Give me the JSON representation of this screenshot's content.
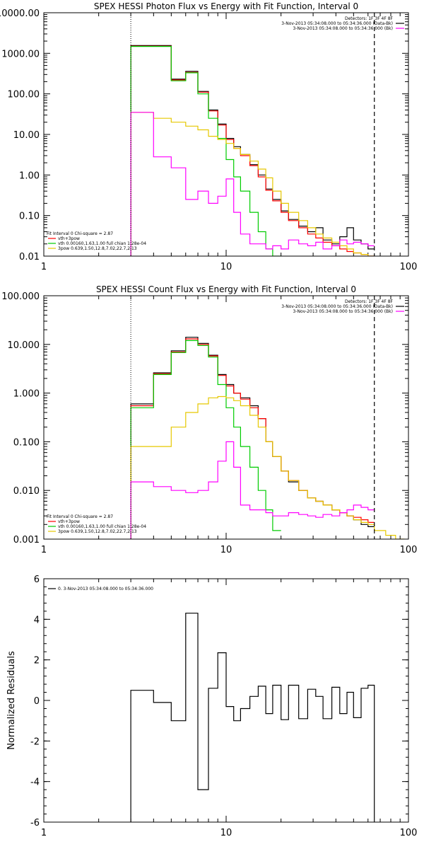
{
  "chart_data": [
    {
      "type": "line",
      "title": "SPEX HESSI Photon Flux vs Energy with Fit Function, Interval 0",
      "xscale": "log",
      "yscale": "log",
      "xlim": [
        1,
        100
      ],
      "ylim": [
        0.01,
        10000
      ],
      "x_ticks": [
        "1",
        "10",
        "100"
      ],
      "y_ticks": [
        "0.01",
        "0.10",
        "1.00",
        "10.00",
        "100.00",
        "1000.00",
        "10000.00"
      ],
      "y_tick_values": [
        0.01,
        0.1,
        1,
        10,
        100,
        1000,
        10000
      ],
      "info_lines": [
        "Detectors: 1F 3F 4F 8F",
        "3-Nov-2013 05:34:08.000 to 05:34:36.000 (Data-Bk)",
        "3-Nov-2013 05:34:08.000 to 05:34:36.000 (Bk)"
      ],
      "info_colors": [
        "#000000",
        "#ff00ff"
      ],
      "legend": [
        {
          "text": "Fit Interval 0   Chi-square = 2.87",
          "color": ""
        },
        {
          "text": "vth+3pow",
          "color": "#ff0000"
        },
        {
          "text": "vth 0.00160,1.63,1.00  full chian 1.28e-04",
          "color": "#00cc00"
        },
        {
          "text": "3pow 0.639,1.50,12.8,7.02,22.7,2.13",
          "color": "#e6c800"
        }
      ],
      "vlines": [
        {
          "x": 3,
          "style": "dotted"
        },
        {
          "x": 65,
          "style": "dashed"
        }
      ],
      "bin_edges": [
        3,
        4,
        5,
        6,
        7,
        8,
        9,
        10,
        11,
        12,
        13.5,
        15,
        16.5,
        18,
        20,
        22,
        25,
        28,
        31,
        34,
        38,
        42,
        46,
        50,
        55,
        60,
        65
      ],
      "series": [
        {
          "color": "#000000",
          "values": [
            1550,
            1550,
            230,
            360,
            115,
            40,
            18,
            8,
            5,
            3.2,
            1.8,
            1.0,
            0.45,
            0.25,
            0.13,
            0.08,
            0.055,
            0.04,
            0.05,
            0.025,
            0.02,
            0.03,
            0.05,
            0.025,
            0.02,
            0.015
          ]
        },
        {
          "color": "#ff0000",
          "values": [
            1500,
            1500,
            220,
            340,
            110,
            38,
            17,
            7.5,
            4.5,
            3.0,
            1.7,
            0.9,
            0.42,
            0.23,
            0.12,
            0.075,
            0.05,
            0.035,
            0.028,
            0.022,
            0.018,
            0.015,
            0.013,
            0.012,
            0.011,
            0.01
          ]
        },
        {
          "color": "#00cc00",
          "values": [
            1480,
            1480,
            210,
            330,
            100,
            25,
            8,
            2.4,
            0.9,
            0.4,
            0.12,
            0.04,
            0.015,
            0.008
          ]
        },
        {
          "color": "#e6c800",
          "values": [
            35,
            25,
            20,
            16,
            13,
            9,
            7.5,
            6,
            4.5,
            3.2,
            2.2,
            1.4,
            0.85,
            0.4,
            0.2,
            0.12,
            0.075,
            0.05,
            0.035,
            0.028,
            0.022,
            0.018,
            0.015,
            0.012,
            0.011,
            0.01
          ]
        },
        {
          "color": "#ff00ff",
          "values": [
            35,
            2.8,
            1.5,
            0.25,
            0.4,
            0.2,
            0.3,
            0.8,
            0.12,
            0.035,
            0.02,
            0.02,
            0.015,
            0.018,
            0.015,
            0.025,
            0.02,
            0.018,
            0.022,
            0.015,
            0.018,
            0.025,
            0.02,
            0.022,
            0.02,
            0.018
          ]
        }
      ]
    },
    {
      "type": "line",
      "title": "SPEX HESSI Count Flux vs Energy with Fit Function, Interval 0",
      "xscale": "log",
      "yscale": "log",
      "xlim": [
        1,
        100
      ],
      "ylim": [
        0.001,
        100
      ],
      "x_ticks": [
        "1",
        "10",
        "100"
      ],
      "y_ticks": [
        "0.001",
        "0.010",
        "0.100",
        "1.000",
        "10.000",
        "100.000"
      ],
      "y_tick_values": [
        0.001,
        0.01,
        0.1,
        1,
        10,
        100
      ],
      "info_lines": [
        "Detectors: 1F 3F 4F 8F",
        "3-Nov-2013 05:34:08.000 to 05:34:36.000 (Data-Bk)",
        "3-Nov-2013 05:34:08.000 to 05:34:36.000 (Bk)"
      ],
      "info_colors": [
        "#000000",
        "#ff00ff"
      ],
      "legend": [
        {
          "text": "Fit Interval 0   Chi-square = 2.87",
          "color": ""
        },
        {
          "text": "vth+3pow",
          "color": "#ff0000"
        },
        {
          "text": "vth 0.00160,1.63,1.00  full chian 1.28e-04",
          "color": "#00cc00"
        },
        {
          "text": "3pow 0.639,1.50,12.8,7.02,22.7,2.13",
          "color": "#e6c800"
        }
      ],
      "vlines": [
        {
          "x": 3,
          "style": "dotted"
        },
        {
          "x": 65,
          "style": "dashed"
        }
      ],
      "bin_edges": [
        3,
        4,
        5,
        6,
        7,
        8,
        9,
        10,
        11,
        12,
        13.5,
        15,
        16.5,
        18,
        20,
        22,
        25,
        28,
        31,
        34,
        38,
        42,
        46,
        50,
        55,
        60,
        65,
        75,
        85,
        95
      ],
      "series": [
        {
          "color": "#000000",
          "values": [
            0.6,
            2.6,
            7.4,
            14,
            10.5,
            6.0,
            2.4,
            1.5,
            1.0,
            0.8,
            0.55,
            0.3,
            0.1,
            0.05,
            0.025,
            0.015,
            0.01,
            0.007,
            0.006,
            0.005,
            0.004,
            0.0035,
            0.003,
            0.0025,
            0.002,
            0.0018
          ]
        },
        {
          "color": "#ff0000",
          "values": [
            0.55,
            2.5,
            7.0,
            13,
            10,
            5.8,
            2.3,
            1.4,
            1.0,
            0.75,
            0.5,
            0.3,
            0.1,
            0.05,
            0.025,
            0.016,
            0.01,
            0.007,
            0.006,
            0.005,
            0.004,
            0.0035,
            0.003,
            0.0028,
            0.0025,
            0.0022
          ]
        },
        {
          "color": "#00cc00",
          "values": [
            0.5,
            2.4,
            6.8,
            12,
            9.5,
            5.5,
            1.5,
            0.5,
            0.2,
            0.08,
            0.03,
            0.01,
            0.004,
            0.0015
          ]
        },
        {
          "color": "#e6c800",
          "values": [
            0.08,
            0.08,
            0.2,
            0.4,
            0.6,
            0.8,
            0.85,
            0.8,
            0.7,
            0.55,
            0.35,
            0.2,
            0.1,
            0.05,
            0.025,
            0.016,
            0.01,
            0.007,
            0.006,
            0.005,
            0.004,
            0.0035,
            0.003,
            0.0025,
            0.0022,
            0.002,
            0.0015,
            0.0012,
            0.001
          ]
        },
        {
          "color": "#ff00ff",
          "values": [
            0.015,
            0.012,
            0.01,
            0.009,
            0.01,
            0.015,
            0.04,
            0.1,
            0.03,
            0.005,
            0.004,
            0.004,
            0.0035,
            0.003,
            0.003,
            0.0035,
            0.0032,
            0.003,
            0.0028,
            0.0032,
            0.003,
            0.0035,
            0.004,
            0.005,
            0.0045,
            0.004
          ]
        }
      ]
    },
    {
      "type": "line",
      "title": "",
      "ylabel": "Normalized Residuals",
      "xscale": "log",
      "yscale": "linear",
      "xlim": [
        1,
        100
      ],
      "ylim": [
        -6,
        6
      ],
      "x_ticks": [
        "1",
        "10",
        "100"
      ],
      "y_ticks": [
        "-6",
        "-4",
        "-2",
        "0",
        "2",
        "4",
        "6"
      ],
      "y_tick_values": [
        -6,
        -4,
        -2,
        0,
        2,
        4,
        6
      ],
      "legend": [
        {
          "text": "0. 3-Nov-2013 05:34:08.000 to 05:34:36.000",
          "color": "#000000"
        }
      ],
      "bin_edges": [
        3,
        4,
        5,
        6,
        7,
        8,
        9,
        10,
        11,
        12,
        13.5,
        15,
        16.5,
        18,
        20,
        22,
        25,
        28,
        31,
        34,
        38,
        42,
        46,
        50,
        55,
        60,
        65
      ],
      "series": [
        {
          "color": "#000000",
          "values": [
            0.5,
            -0.1,
            -1.0,
            4.3,
            -4.4,
            0.6,
            2.35,
            -0.3,
            -1.0,
            -0.4,
            0.2,
            0.7,
            -0.65,
            0.75,
            -0.95,
            0.75,
            -0.9,
            0.55,
            0.2,
            -0.9,
            0.65,
            -0.65,
            0.4,
            -0.85,
            0.6,
            0.75
          ]
        }
      ]
    }
  ]
}
